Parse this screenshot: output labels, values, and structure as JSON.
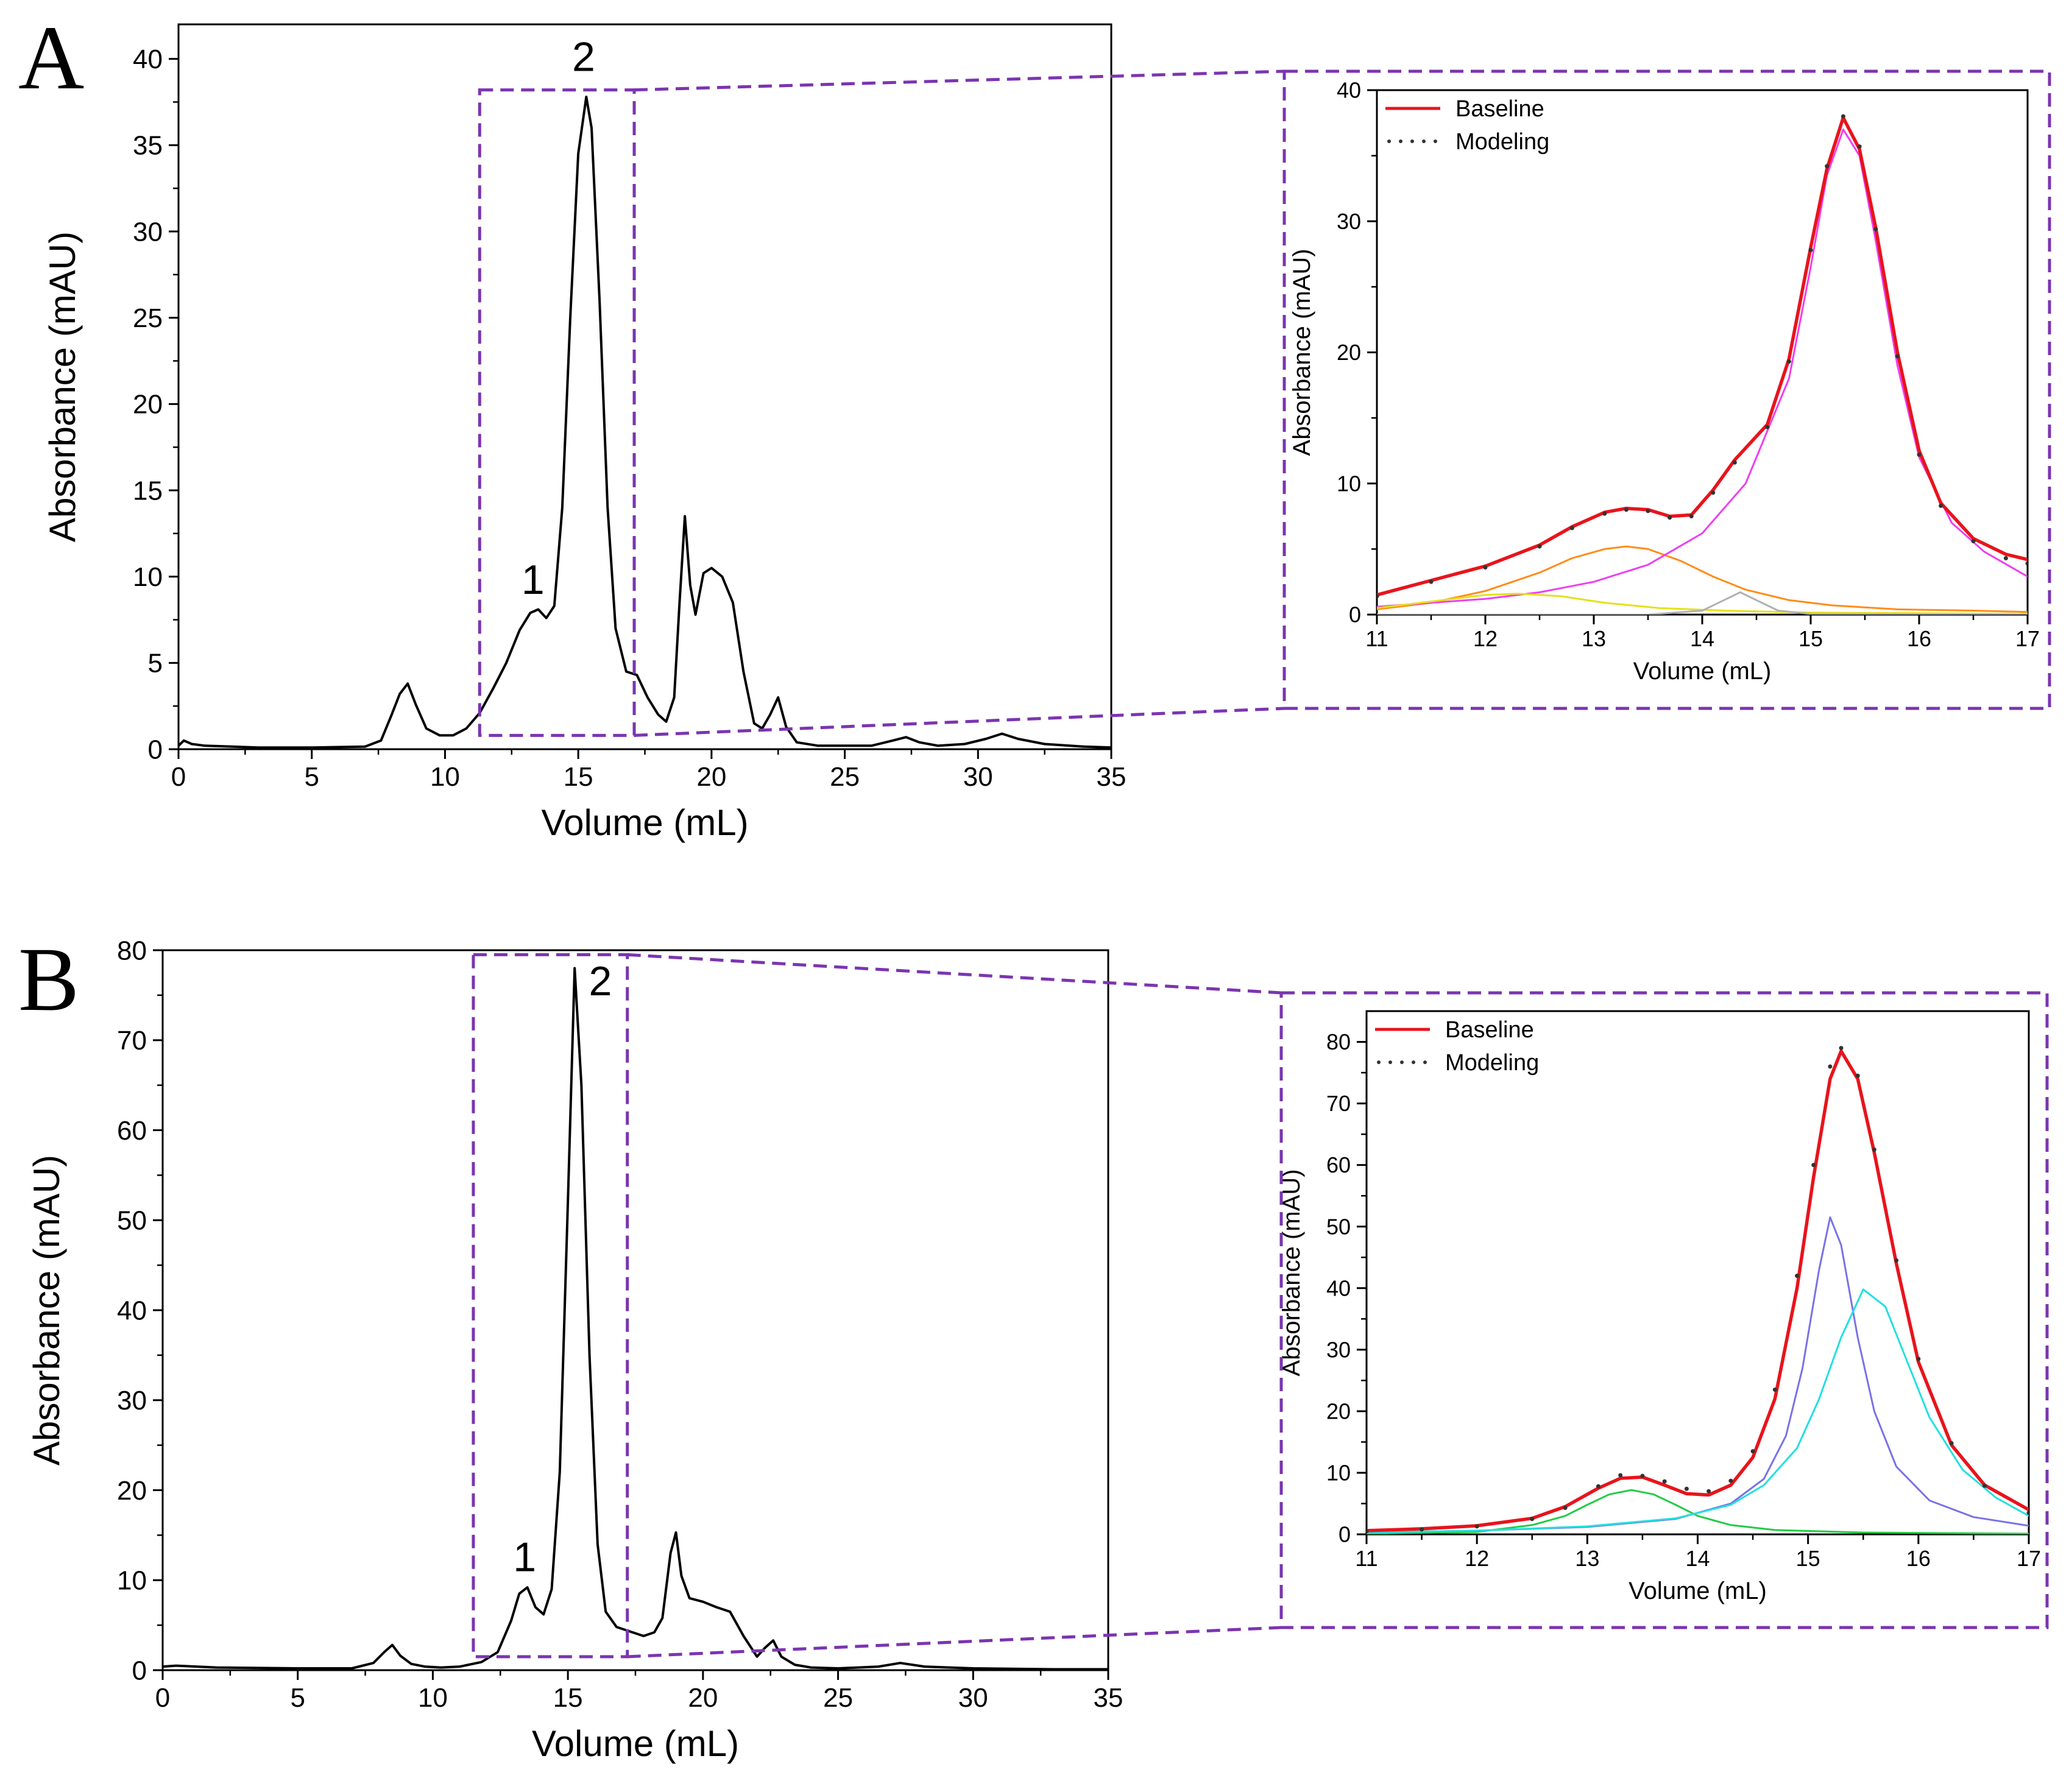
{
  "figure": {
    "colors": {
      "trace": "#000000",
      "highlight_box": "#7b35b0",
      "baseline": "#e8141c",
      "modeling_dots": "#333333"
    }
  },
  "chart_data": [
    {
      "id": "A-main",
      "panel_label": "A",
      "type": "line",
      "title": "",
      "xlabel": "Volume (mL)",
      "ylabel": "Absorbance (mAU)",
      "xlim": [
        0,
        35
      ],
      "ylim": [
        0,
        42
      ],
      "xticks": [
        0,
        5,
        10,
        15,
        20,
        25,
        30,
        35
      ],
      "yticks": [
        0,
        5,
        10,
        15,
        20,
        25,
        30,
        35,
        40
      ],
      "zoom_region": {
        "x": [
          11.3,
          17.1
        ],
        "y": [
          0.8,
          38.2
        ]
      },
      "series": [
        {
          "name": "chromatogram",
          "color": "#000000",
          "x": [
            0,
            0.2,
            0.5,
            1,
            3,
            5,
            7,
            7.6,
            8.0,
            8.3,
            8.6,
            8.9,
            9.3,
            9.8,
            10.3,
            10.8,
            11.3,
            11.8,
            12.3,
            12.8,
            13.2,
            13.5,
            13.8,
            14.1,
            14.4,
            14.7,
            15.0,
            15.3,
            15.5,
            15.8,
            16.1,
            16.4,
            16.8,
            17.2,
            17.6,
            18.0,
            18.3,
            18.6,
            18.8,
            19.0,
            19.2,
            19.4,
            19.7,
            20.0,
            20.4,
            20.8,
            21.2,
            21.6,
            21.9,
            22.2,
            22.5,
            22.8,
            23.2,
            24,
            25,
            26,
            26.8,
            27.3,
            27.8,
            28.5,
            29.5,
            30.3,
            30.9,
            31.5,
            32.5,
            34,
            35
          ],
          "y": [
            0.2,
            0.5,
            0.3,
            0.2,
            0.1,
            0.1,
            0.15,
            0.5,
            2.0,
            3.2,
            3.8,
            2.6,
            1.2,
            0.8,
            0.8,
            1.2,
            2.1,
            3.5,
            5.0,
            6.9,
            7.9,
            8.1,
            7.6,
            8.3,
            14.0,
            25.0,
            34.5,
            37.8,
            36.0,
            26.0,
            14.0,
            7.0,
            4.5,
            4.3,
            3.0,
            2.0,
            1.6,
            3.0,
            8.5,
            13.5,
            9.5,
            7.8,
            10.2,
            10.5,
            10.0,
            8.5,
            4.5,
            1.5,
            1.2,
            2.0,
            3.0,
            1.3,
            0.4,
            0.2,
            0.2,
            0.2,
            0.5,
            0.7,
            0.4,
            0.2,
            0.3,
            0.6,
            0.9,
            0.6,
            0.3,
            0.15,
            0.1
          ]
        }
      ],
      "annotations": [
        {
          "text": "1",
          "x": 13.3,
          "y": 9.0
        },
        {
          "text": "2",
          "x": 15.2,
          "y": 39.3
        }
      ]
    },
    {
      "id": "A-inset",
      "type": "line",
      "title": "",
      "xlabel": "Volume (mL)",
      "ylabel": "Absorbance (mAU)",
      "xlim": [
        11,
        17
      ],
      "ylim": [
        0,
        40
      ],
      "xticks": [
        11,
        12,
        13,
        14,
        15,
        16,
        17
      ],
      "yticks": [
        0,
        10,
        20,
        30,
        40
      ],
      "legend": {
        "position": "top-left",
        "entries": [
          "Baseline",
          "Modeling"
        ]
      },
      "series": [
        {
          "name": "Baseline",
          "color": "#e8141c",
          "x": [
            11,
            11.5,
            12,
            12.5,
            12.8,
            13.1,
            13.3,
            13.5,
            13.7,
            13.9,
            14.1,
            14.3,
            14.6,
            14.8,
            15.0,
            15.15,
            15.3,
            15.45,
            15.6,
            15.8,
            16.0,
            16.2,
            16.5,
            16.8,
            17
          ],
          "y": [
            1.5,
            2.6,
            3.7,
            5.3,
            6.7,
            7.8,
            8.1,
            8.0,
            7.5,
            7.6,
            9.5,
            11.8,
            14.5,
            19.5,
            28.0,
            34.0,
            37.9,
            35.5,
            29.5,
            20.0,
            12.5,
            8.5,
            5.8,
            4.6,
            4.2
          ]
        },
        {
          "name": "Modeling",
          "color": "#333333",
          "dotted": true,
          "x": [
            11,
            11.5,
            12,
            12.5,
            12.8,
            13.1,
            13.3,
            13.5,
            13.7,
            13.9,
            14.1,
            14.3,
            14.6,
            14.8,
            15.0,
            15.15,
            15.3,
            15.45,
            15.6,
            15.8,
            16.0,
            16.2,
            16.5,
            16.8,
            17
          ],
          "y": [
            1.4,
            2.5,
            3.6,
            5.2,
            6.6,
            7.7,
            8.0,
            7.9,
            7.4,
            7.5,
            9.3,
            11.6,
            14.3,
            19.3,
            27.8,
            34.2,
            38.0,
            35.7,
            29.4,
            19.7,
            12.2,
            8.3,
            5.6,
            4.3,
            3.9
          ]
        },
        {
          "name": "component-1",
          "color": "#ff8c1a",
          "x": [
            11,
            11.5,
            12,
            12.5,
            12.8,
            13.1,
            13.3,
            13.5,
            13.8,
            14.1,
            14.4,
            14.8,
            15.2,
            15.8,
            16.5,
            17
          ],
          "y": [
            0.4,
            0.9,
            1.8,
            3.2,
            4.3,
            5.0,
            5.2,
            5.0,
            4.1,
            2.9,
            1.9,
            1.1,
            0.7,
            0.4,
            0.3,
            0.2
          ]
        },
        {
          "name": "component-2",
          "color": "#ee3ef2",
          "x": [
            11,
            11.5,
            12,
            12.5,
            13,
            13.5,
            14,
            14.4,
            14.8,
            15.0,
            15.15,
            15.3,
            15.45,
            15.6,
            15.8,
            16.0,
            16.3,
            16.6,
            17
          ],
          "y": [
            0.6,
            0.9,
            1.2,
            1.7,
            2.5,
            3.8,
            6.2,
            10.0,
            18.0,
            26.5,
            33.5,
            37.0,
            35.0,
            28.5,
            19.0,
            12.0,
            7.0,
            4.8,
            2.9
          ]
        },
        {
          "name": "component-3",
          "color": "#e6e01a",
          "x": [
            11,
            11.5,
            12,
            12.3,
            12.7,
            13.1,
            13.6,
            14.2,
            15,
            16,
            17
          ],
          "y": [
            0.5,
            1.0,
            1.5,
            1.6,
            1.4,
            0.9,
            0.5,
            0.3,
            0.15,
            0.1,
            0.05
          ]
        },
        {
          "name": "component-4",
          "color": "#b0b0b0",
          "x": [
            11,
            13.5,
            14.0,
            14.2,
            14.35,
            14.5,
            14.7,
            15.0,
            17
          ],
          "y": [
            0,
            0,
            0.3,
            1.1,
            1.7,
            1.1,
            0.3,
            0.05,
            0
          ]
        }
      ]
    },
    {
      "id": "B-main",
      "panel_label": "B",
      "type": "line",
      "title": "",
      "xlabel": "Volume (mL)",
      "ylabel": "Absorbance (mAU)",
      "xlim": [
        0,
        35
      ],
      "ylim": [
        0,
        80
      ],
      "xticks": [
        0,
        5,
        10,
        15,
        20,
        25,
        30,
        35
      ],
      "yticks": [
        0,
        10,
        20,
        30,
        40,
        50,
        60,
        70,
        80
      ],
      "zoom_region": {
        "x": [
          11.5,
          17.2
        ],
        "y": [
          1.5,
          79.5
        ]
      },
      "series": [
        {
          "name": "chromatogram",
          "color": "#000000",
          "x": [
            0,
            0.5,
            2,
            5,
            7,
            7.8,
            8.2,
            8.5,
            8.8,
            9.2,
            9.7,
            10.3,
            11.0,
            11.8,
            12.4,
            12.9,
            13.2,
            13.5,
            13.8,
            14.1,
            14.4,
            14.7,
            15.0,
            15.25,
            15.5,
            15.8,
            16.1,
            16.4,
            16.8,
            17.3,
            17.8,
            18.2,
            18.5,
            18.8,
            19.0,
            19.2,
            19.5,
            20.0,
            20.5,
            21.0,
            21.5,
            22.0,
            22.3,
            22.6,
            22.9,
            23.4,
            24,
            25,
            26.5,
            27.3,
            28.2,
            30,
            33,
            35
          ],
          "y": [
            0.4,
            0.5,
            0.3,
            0.2,
            0.2,
            0.8,
            2.0,
            2.8,
            1.6,
            0.7,
            0.4,
            0.3,
            0.4,
            0.9,
            2.0,
            5.5,
            8.5,
            9.2,
            7.0,
            6.2,
            9.0,
            22.0,
            52.0,
            78.0,
            65.0,
            35.0,
            14.0,
            6.5,
            4.8,
            4.3,
            3.8,
            4.2,
            5.8,
            13.0,
            15.3,
            10.5,
            8.0,
            7.6,
            7.0,
            6.5,
            3.8,
            1.5,
            2.5,
            3.3,
            1.5,
            0.6,
            0.3,
            0.2,
            0.4,
            0.8,
            0.4,
            0.2,
            0.1,
            0.1
          ]
        }
      ],
      "annotations": [
        {
          "text": "1",
          "x": 13.4,
          "y": 11.0
        },
        {
          "text": "2",
          "x": 16.2,
          "y": 75.0
        }
      ]
    },
    {
      "id": "B-inset",
      "type": "line",
      "title": "",
      "xlabel": "Volume (mL)",
      "ylabel": "Absorbance (mAU)",
      "xlim": [
        11,
        17
      ],
      "ylim": [
        0,
        85
      ],
      "xticks": [
        11,
        12,
        13,
        14,
        15,
        16,
        17
      ],
      "yticks": [
        0,
        10,
        20,
        30,
        40,
        50,
        60,
        70,
        80
      ],
      "legend": {
        "position": "top-left",
        "entries": [
          "Baseline",
          "Modeling"
        ]
      },
      "series": [
        {
          "name": "Baseline",
          "color": "#e8141c",
          "x": [
            11,
            11.5,
            12,
            12.5,
            12.8,
            13.1,
            13.3,
            13.5,
            13.7,
            13.9,
            14.1,
            14.3,
            14.5,
            14.7,
            14.9,
            15.05,
            15.2,
            15.3,
            15.45,
            15.6,
            15.8,
            16.0,
            16.3,
            16.6,
            17
          ],
          "y": [
            0.6,
            0.9,
            1.4,
            2.6,
            4.5,
            7.5,
            9.1,
            9.3,
            8.0,
            6.6,
            6.4,
            8.0,
            12.5,
            22.0,
            40.0,
            58.0,
            74.0,
            78.5,
            74.0,
            62.0,
            44.0,
            28.0,
            14.5,
            8.0,
            4.0
          ]
        },
        {
          "name": "Modeling",
          "color": "#333333",
          "dotted": true,
          "x": [
            11,
            11.5,
            12,
            12.5,
            12.8,
            13.1,
            13.3,
            13.5,
            13.7,
            13.9,
            14.1,
            14.3,
            14.5,
            14.7,
            14.9,
            15.05,
            15.2,
            15.3,
            15.45,
            15.6,
            15.8,
            16.0,
            16.3,
            16.6,
            17
          ],
          "y": [
            0.5,
            0.8,
            1.3,
            2.5,
            4.3,
            7.8,
            9.6,
            9.5,
            8.6,
            7.4,
            7.0,
            8.7,
            13.5,
            23.5,
            42.0,
            60.0,
            76.0,
            79.0,
            74.5,
            62.5,
            44.5,
            28.5,
            14.8,
            7.9,
            3.5
          ]
        },
        {
          "name": "component-1",
          "color": "#22cc44",
          "x": [
            11,
            12,
            12.5,
            12.8,
            13.0,
            13.2,
            13.4,
            13.6,
            13.8,
            14.0,
            14.3,
            14.7,
            15.5,
            17
          ],
          "y": [
            0.1,
            0.4,
            1.5,
            3.0,
            4.8,
            6.5,
            7.2,
            6.5,
            4.8,
            3.0,
            1.5,
            0.7,
            0.3,
            0.1
          ]
        },
        {
          "name": "component-2",
          "color": "#7a72e6",
          "x": [
            11,
            12,
            13,
            13.8,
            14.3,
            14.6,
            14.8,
            14.95,
            15.1,
            15.2,
            15.3,
            15.45,
            15.6,
            15.8,
            16.1,
            16.5,
            17
          ],
          "y": [
            0.3,
            0.6,
            1.2,
            2.5,
            5.0,
            9.0,
            16.0,
            27.0,
            43.0,
            51.5,
            47.0,
            32.0,
            20.0,
            11.0,
            5.5,
            2.8,
            1.4
          ]
        },
        {
          "name": "component-3",
          "color": "#22e0e0",
          "x": [
            11,
            12,
            13,
            13.8,
            14.3,
            14.6,
            14.9,
            15.1,
            15.3,
            15.5,
            15.7,
            15.9,
            16.1,
            16.4,
            16.7,
            17
          ],
          "y": [
            0.3,
            0.6,
            1.3,
            2.6,
            4.8,
            8.0,
            14.0,
            22.0,
            32.0,
            39.8,
            37.0,
            28.0,
            19.0,
            10.5,
            6.0,
            3.0
          ]
        }
      ]
    }
  ]
}
